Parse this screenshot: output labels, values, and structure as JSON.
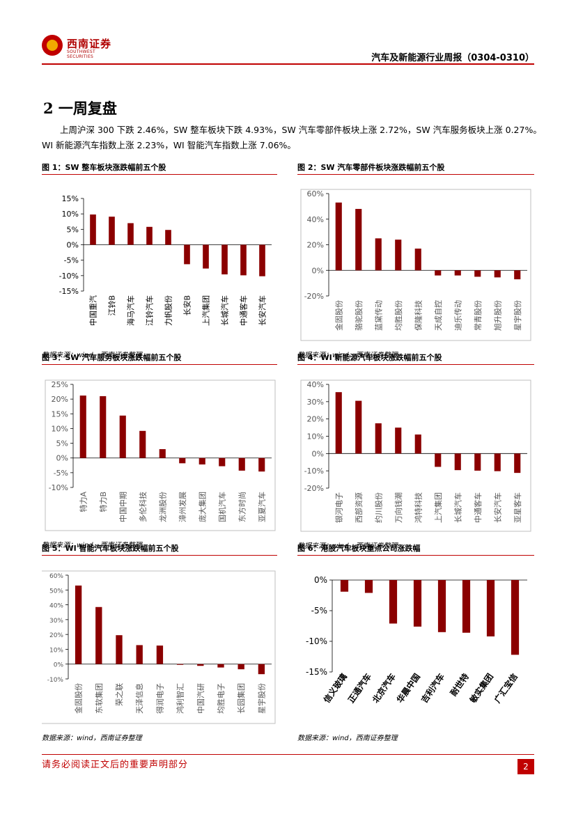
{
  "header": {
    "logo_cn": "西南证券",
    "logo_en": "SOUTHWEST SECURITIES",
    "report_title": "汽车及新能源行业周报（0304-0310）"
  },
  "section_title": "2 一周复盘",
  "paragraph": "上周沪深 300 下跌 2.46%，SW 整车板块下跌 4.93%，SW 汽车零部件板块上涨 2.72%，SW 汽车服务板块上涨 0.27%。WI 新能源汽车指数上涨 2.23%，WI 智能汽车指数上涨 7.06%。",
  "footer": {
    "disclaimer": "请务必阅读正文后的重要声明部分",
    "page": "2"
  },
  "bar_color": "#8b0000",
  "chart_data": [
    {
      "type": "bar",
      "title": "图 1：SW 整车板块涨跌幅前五个股",
      "source": "数据来源：wind，西南证券整理",
      "categories": [
        "中国重汽",
        "江铃B",
        "海马汽车",
        "江铃汽车",
        "力帆股份",
        "长安B",
        "上汽集团",
        "长城汽车",
        "中通客车",
        "长安汽车"
      ],
      "values": [
        9.8,
        9.1,
        7.0,
        5.8,
        4.8,
        -6.3,
        -7.7,
        -9.6,
        -9.9,
        -10.2
      ],
      "ylim": [
        -15,
        15
      ],
      "ticks": [
        "15%",
        "10%",
        "5%",
        "0%",
        "-5%",
        "-10%",
        "-15%"
      ],
      "tick_values": [
        15,
        10,
        5,
        0,
        -5,
        -10,
        -15
      ]
    },
    {
      "type": "bar",
      "title": "图 2：SW 汽车零部件板块涨跌幅前五个股",
      "source": "数据来源：wind，西南证券整理",
      "categories": [
        "金固股份",
        "骆驼股份",
        "蓝黛传动",
        "均胜股份",
        "保隆科技",
        "天成自控",
        "迪乐传动",
        "常青股份",
        "旭升股份",
        "星宇股份"
      ],
      "values": [
        53,
        48,
        25,
        24,
        17,
        -4,
        -4,
        -5,
        -5.5,
        -7
      ],
      "ylim": [
        -20,
        60
      ],
      "ticks": [
        "60%",
        "40%",
        "20%",
        "0%",
        "-20%"
      ],
      "tick_values": [
        60,
        40,
        20,
        0,
        -20
      ]
    },
    {
      "type": "bar",
      "title": "图 3：SW 汽车服务板块涨跌幅前五个股",
      "source": "数据来源：wind，西南证券整理",
      "categories": [
        "特力A",
        "特力B",
        "中国中期",
        "多伦科技",
        "龙洲股份",
        "漳州发展",
        "庞大集团",
        "国机汽车",
        "东方时尚",
        "亚夏汽车"
      ],
      "values": [
        21.2,
        21,
        14.4,
        9.2,
        3,
        -1.8,
        -2.2,
        -2.8,
        -4.3,
        -4.6
      ],
      "ylim": [
        -10,
        25
      ],
      "ticks": [
        "25%",
        "20%",
        "15%",
        "10%",
        "5%",
        "0%",
        "-5%",
        "-10%"
      ],
      "tick_values": [
        25,
        20,
        15,
        10,
        5,
        0,
        -5,
        -10
      ]
    },
    {
      "type": "bar",
      "title": "图 4：WI 新能源汽车板块涨跌幅前五个股",
      "source": "数据来源：wind，西南证券整理",
      "categories": [
        "银河电子",
        "西部资源",
        "约川股份",
        "万向钱潮",
        "鸿特科技",
        "上汽集团",
        "长城汽车",
        "中通客车",
        "长安汽车",
        "亚星客车"
      ],
      "values": [
        35.5,
        30.5,
        17.5,
        15,
        11,
        -7.7,
        -9.6,
        -9.9,
        -10.2,
        -11.2
      ],
      "ylim": [
        -20,
        40
      ],
      "ticks": [
        "40%",
        "30%",
        "20%",
        "10%",
        "0%",
        "-10%",
        "-20%"
      ],
      "tick_values": [
        40,
        30,
        20,
        10,
        0,
        -10,
        -20
      ]
    },
    {
      "type": "bar",
      "title": "图 5：WI 智能汽车板块涨跌幅前五个股",
      "source": "数据来源：wind，西南证券整理",
      "categories": [
        "金固股份",
        "东软集团",
        "荣之联",
        "天泽信息",
        "得润电子",
        "鸿利智汇",
        "中国汽研",
        "均胜电子",
        "长园集团",
        "星宇股份"
      ],
      "values": [
        53,
        38.5,
        19.5,
        12.8,
        12.5,
        -0.5,
        -1.2,
        -2.3,
        -3.5,
        -6.8
      ],
      "ylim": [
        -10,
        60
      ],
      "ticks": [
        "60%",
        "50%",
        "40%",
        "30%",
        "20%",
        "10%",
        "0%",
        "-10%"
      ],
      "tick_values": [
        60,
        50,
        40,
        30,
        20,
        10,
        0,
        -10
      ]
    },
    {
      "type": "bar",
      "title": "图 6：港股汽车板块重点公司涨跌幅",
      "source": "数据来源：wind，西南证券整理",
      "categories": [
        "信义玻璃",
        "正通汽车",
        "北京汽车",
        "华晨中国",
        "吉利汽车",
        "耐世特",
        "敏实集团",
        "广汇宝信"
      ],
      "values": [
        -1.9,
        -2.1,
        -7.1,
        -7.6,
        -8.5,
        -8.6,
        -9.2,
        -12.2
      ],
      "ylim": [
        -15,
        0
      ],
      "ticks": [
        "0%",
        "-5%",
        "-10%",
        "-15%"
      ],
      "tick_values": [
        0,
        -5,
        -10,
        -15
      ]
    }
  ]
}
